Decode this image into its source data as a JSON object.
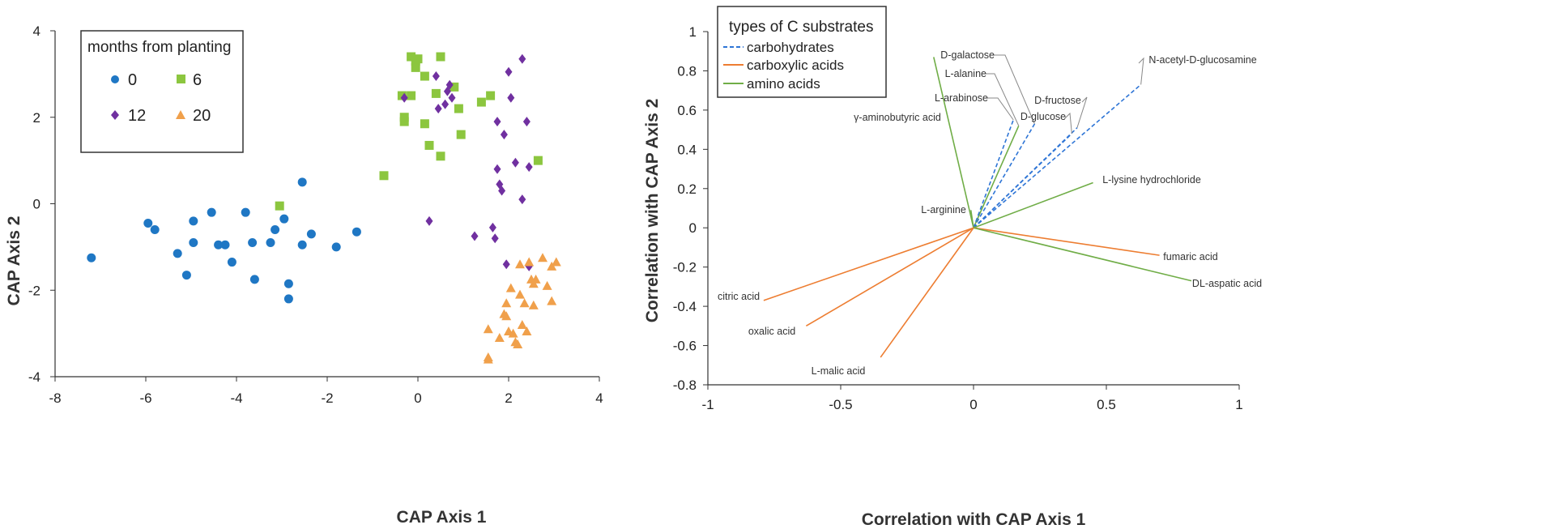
{
  "colors": {
    "0": "#1f77c4",
    "6": "#8cc63f",
    "12": "#7030a0",
    "20": "#f0a04b",
    "carbohydrates": "#2e75d6",
    "carboxylic acids": "#ed7d31",
    "amino acids": "#70ad47"
  },
  "chart_data": [
    {
      "type": "scatter",
      "xlabel": "CAP Axis 1",
      "ylabel": "CAP Axis 2",
      "xlim": [
        -8,
        4
      ],
      "ylim": [
        -4,
        4
      ],
      "xticks": [
        -8,
        -6,
        -4,
        -2,
        0,
        2,
        4
      ],
      "yticks": [
        -4,
        -2,
        0,
        2,
        4
      ],
      "legend": {
        "title": "months from planting",
        "placement": "top-left"
      },
      "series": [
        {
          "name": "0",
          "marker": "circle",
          "points": [
            [
              -7.2,
              -1.25
            ],
            [
              -5.95,
              -0.45
            ],
            [
              -5.8,
              -0.6
            ],
            [
              -5.3,
              -1.15
            ],
            [
              -5.1,
              -1.65
            ],
            [
              -4.95,
              -0.4
            ],
            [
              -4.95,
              -0.9
            ],
            [
              -4.55,
              -0.2
            ],
            [
              -4.4,
              -0.95
            ],
            [
              -4.25,
              -0.95
            ],
            [
              -4.1,
              -1.35
            ],
            [
              -3.8,
              -0.2
            ],
            [
              -3.65,
              -0.9
            ],
            [
              -3.6,
              -1.75
            ],
            [
              -3.25,
              -0.9
            ],
            [
              -3.15,
              -0.6
            ],
            [
              -2.95,
              -0.35
            ],
            [
              -2.85,
              -1.85
            ],
            [
              -2.85,
              -2.2
            ],
            [
              -2.55,
              -0.95
            ],
            [
              -2.55,
              0.5
            ],
            [
              -2.35,
              -0.7
            ],
            [
              -1.8,
              -1.0
            ],
            [
              -1.35,
              -0.65
            ]
          ]
        },
        {
          "name": "6",
          "marker": "square",
          "points": [
            [
              -0.75,
              0.65
            ],
            [
              -0.35,
              2.5
            ],
            [
              -0.3,
              1.9
            ],
            [
              -0.3,
              2.0
            ],
            [
              -0.15,
              2.5
            ],
            [
              -0.15,
              3.4
            ],
            [
              -0.05,
              3.3
            ],
            [
              -0.05,
              3.15
            ],
            [
              0.0,
              3.35
            ],
            [
              0.15,
              2.95
            ],
            [
              0.15,
              1.85
            ],
            [
              0.25,
              1.35
            ],
            [
              0.4,
              2.55
            ],
            [
              0.5,
              3.4
            ],
            [
              0.5,
              1.1
            ],
            [
              0.8,
              2.7
            ],
            [
              0.9,
              2.2
            ],
            [
              0.95,
              1.6
            ],
            [
              1.4,
              2.35
            ],
            [
              1.6,
              2.5
            ],
            [
              2.65,
              1.0
            ],
            [
              -3.05,
              -0.05
            ]
          ]
        },
        {
          "name": "12",
          "marker": "diamond",
          "points": [
            [
              -0.3,
              2.45
            ],
            [
              0.25,
              -0.4
            ],
            [
              0.4,
              2.95
            ],
            [
              0.45,
              2.2
            ],
            [
              0.6,
              2.3
            ],
            [
              0.65,
              2.6
            ],
            [
              0.7,
              2.75
            ],
            [
              0.75,
              2.45
            ],
            [
              1.25,
              -0.75
            ],
            [
              1.65,
              -0.55
            ],
            [
              1.7,
              -0.8
            ],
            [
              1.75,
              1.9
            ],
            [
              1.75,
              0.8
            ],
            [
              1.8,
              0.45
            ],
            [
              1.85,
              0.3
            ],
            [
              1.9,
              1.6
            ],
            [
              1.95,
              -1.4
            ],
            [
              2.0,
              3.05
            ],
            [
              2.05,
              2.45
            ],
            [
              2.15,
              0.95
            ],
            [
              2.3,
              3.35
            ],
            [
              2.3,
              0.1
            ],
            [
              2.4,
              1.9
            ],
            [
              2.45,
              0.85
            ],
            [
              2.45,
              -1.45
            ]
          ]
        },
        {
          "name": "20",
          "marker": "triangle",
          "points": [
            [
              1.55,
              -2.9
            ],
            [
              1.55,
              -3.55
            ],
            [
              1.55,
              -3.6
            ],
            [
              1.8,
              -3.1
            ],
            [
              1.9,
              -2.55
            ],
            [
              1.95,
              -2.3
            ],
            [
              2.0,
              -2.95
            ],
            [
              2.05,
              -1.95
            ],
            [
              2.1,
              -3.0
            ],
            [
              2.15,
              -3.2
            ],
            [
              2.2,
              -3.25
            ],
            [
              2.25,
              -2.1
            ],
            [
              2.3,
              -2.8
            ],
            [
              2.35,
              -2.3
            ],
            [
              2.4,
              -2.95
            ],
            [
              2.45,
              -1.35
            ],
            [
              2.5,
              -1.75
            ],
            [
              2.55,
              -1.85
            ],
            [
              2.55,
              -2.35
            ],
            [
              2.6,
              -1.75
            ],
            [
              2.75,
              -1.25
            ],
            [
              2.85,
              -1.9
            ],
            [
              2.95,
              -1.45
            ],
            [
              2.95,
              -2.25
            ],
            [
              3.05,
              -1.35
            ],
            [
              1.95,
              -2.6
            ],
            [
              2.25,
              -1.4
            ]
          ]
        }
      ]
    },
    {
      "type": "vector",
      "xlabel": "Correlation with CAP Axis 1",
      "ylabel": "Correlation with CAP Axis 2",
      "xlim": [
        -1,
        1
      ],
      "ylim": [
        -0.8,
        1
      ],
      "xticks": [
        "-1",
        "-0.5",
        "0",
        "0.5",
        "1"
      ],
      "yticks": [
        "-0.8",
        "-0.6",
        "-0.4",
        "-0.2",
        "0",
        "0.2",
        "0.4",
        "0.6",
        "0.8",
        "1"
      ],
      "legend": {
        "title": "types of C substrates",
        "placement": "top-left",
        "entries": [
          "carbohydrates",
          "carboxylic acids",
          "amino acids"
        ]
      },
      "vectors": [
        {
          "label": "D-galactose",
          "type": "carbohydrates",
          "x": 0.23,
          "y": 0.53
        },
        {
          "label": "L-alanine",
          "type": "amino acids",
          "x": 0.17,
          "y": 0.52
        },
        {
          "label": "L-arabinose",
          "type": "carbohydrates",
          "x": 0.15,
          "y": 0.55
        },
        {
          "label": "D-fructose",
          "type": "carbohydrates",
          "x": 0.39,
          "y": 0.51
        },
        {
          "label": "D-glucose",
          "type": "carbohydrates",
          "x": 0.37,
          "y": 0.48
        },
        {
          "label": "N-acetyl-D-glucosamine",
          "type": "carbohydrates",
          "x": 0.63,
          "y": 0.73
        },
        {
          "label": "γ-aminobutyric acid",
          "type": "amino acids",
          "x": -0.15,
          "y": 0.87
        },
        {
          "label": "L-lysine hydrochloride",
          "type": "amino acids",
          "x": 0.45,
          "y": 0.23
        },
        {
          "label": "L-arginine",
          "type": "amino acids",
          "x": -0.01,
          "y": 0.09
        },
        {
          "label": "fumaric acid",
          "type": "carboxylic acids",
          "x": 0.7,
          "y": -0.14
        },
        {
          "label": "DL-aspatic acid",
          "type": "amino acids",
          "x": 0.82,
          "y": -0.27
        },
        {
          "label": "citric acid",
          "type": "carboxylic acids",
          "x": -0.79,
          "y": -0.37
        },
        {
          "label": "oxalic acid",
          "type": "carboxylic acids",
          "x": -0.63,
          "y": -0.5
        },
        {
          "label": "L-malic acid",
          "type": "carboxylic acids",
          "x": -0.35,
          "y": -0.66
        }
      ]
    }
  ]
}
